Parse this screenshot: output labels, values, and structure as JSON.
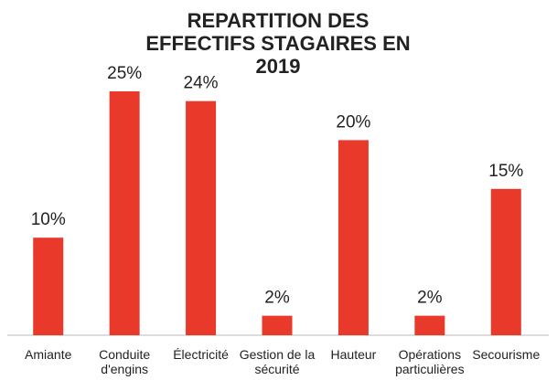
{
  "chart_data": {
    "type": "bar",
    "title": "REPARTITION DES EFFECTIFS STAGAIRES EN 2019",
    "categories": [
      "Amiante",
      "Conduite d'engins",
      "Électricité",
      "Gestion de la sécurité",
      "Hauteur",
      "Opérations particulières",
      "Secourisme"
    ],
    "values": [
      10,
      25,
      24,
      2,
      20,
      2,
      15
    ],
    "value_labels": [
      "10%",
      "25%",
      "24%",
      "2%",
      "20%",
      "2%",
      "15%"
    ],
    "color": "#e8392a"
  }
}
